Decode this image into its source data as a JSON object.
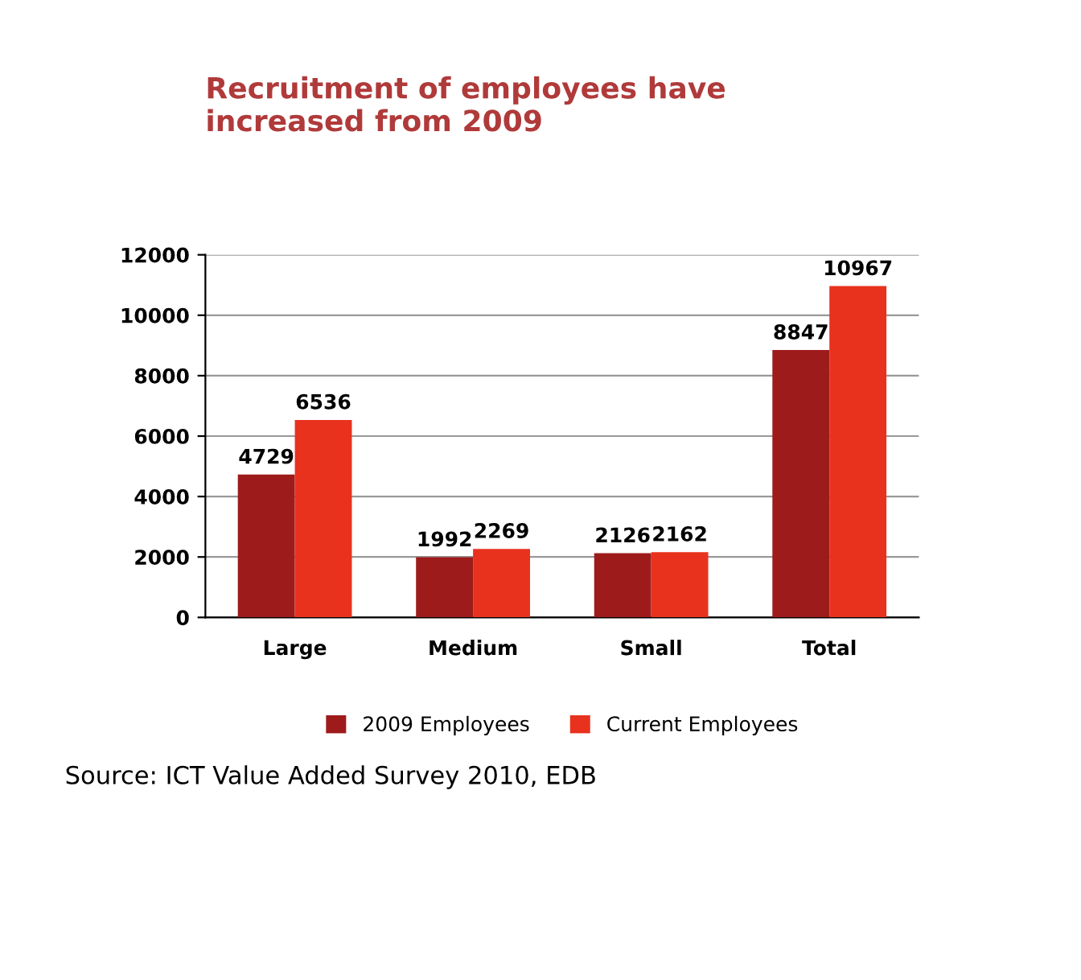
{
  "chart_data": {
    "type": "bar",
    "title": "Recruitment of employees have\nincreased from 2009",
    "categories": [
      "Large",
      "Medium",
      "Small",
      "Total"
    ],
    "series": [
      {
        "name": "2009 Employees",
        "color": "#9e1b1b",
        "values": [
          4729,
          1992,
          2126,
          8847
        ]
      },
      {
        "name": "Current Employees",
        "color": "#e8321e",
        "values": [
          6536,
          2269,
          2162,
          10967
        ]
      }
    ],
    "ylim": [
      0,
      12000
    ],
    "yticks": [
      0,
      2000,
      4000,
      6000,
      8000,
      10000,
      12000
    ],
    "grid": "y",
    "legend": "bottom",
    "data_labels": true,
    "annotations": [
      "Source: ICT Value Added Survey 2010, EDB"
    ]
  }
}
